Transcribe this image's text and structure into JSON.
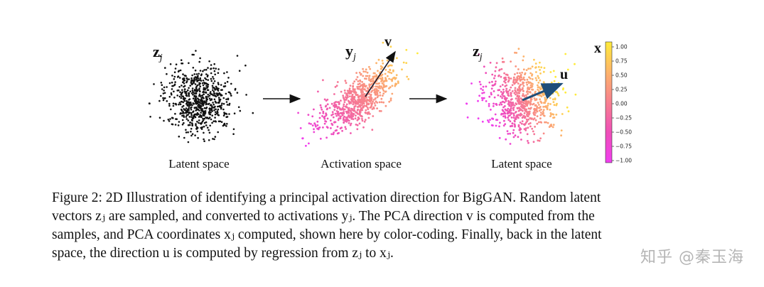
{
  "panels": {
    "left": {
      "var_label": "z",
      "var_sub": "j",
      "caption": "Latent space"
    },
    "middle": {
      "var_label": "y",
      "var_sub": "j",
      "vector_label": "v",
      "caption": "Activation space"
    },
    "right": {
      "var_label": "z",
      "var_sub": "j",
      "vector_label": "u",
      "caption": "Latent space"
    }
  },
  "colorbar": {
    "label": "x",
    "ticks": [
      "1.00",
      "0.75",
      "0.50",
      "0.25",
      "0.00",
      "−0.25",
      "−0.50",
      "−0.75",
      "−1.00"
    ],
    "min": -1.0,
    "max": 1.0,
    "colormap": [
      "#ffeb3b",
      "#fdb46a",
      "#f77f8f",
      "#ef4fb8",
      "#f03ef0"
    ]
  },
  "caption": {
    "lines": [
      "Figure 2:  2D Illustration of identifying a principal activation direction for BigGAN. Random latent",
      "vectors zⱼ are sampled, and converted to activations yⱼ. The PCA direction v is computed from the",
      "samples, and PCA coordinates xⱼ computed, shown here by color-coding. Finally, back in the latent",
      "space, the direction u is computed by regression from zⱼ to xⱼ."
    ]
  },
  "watermark": "知乎 @秦玉海"
}
